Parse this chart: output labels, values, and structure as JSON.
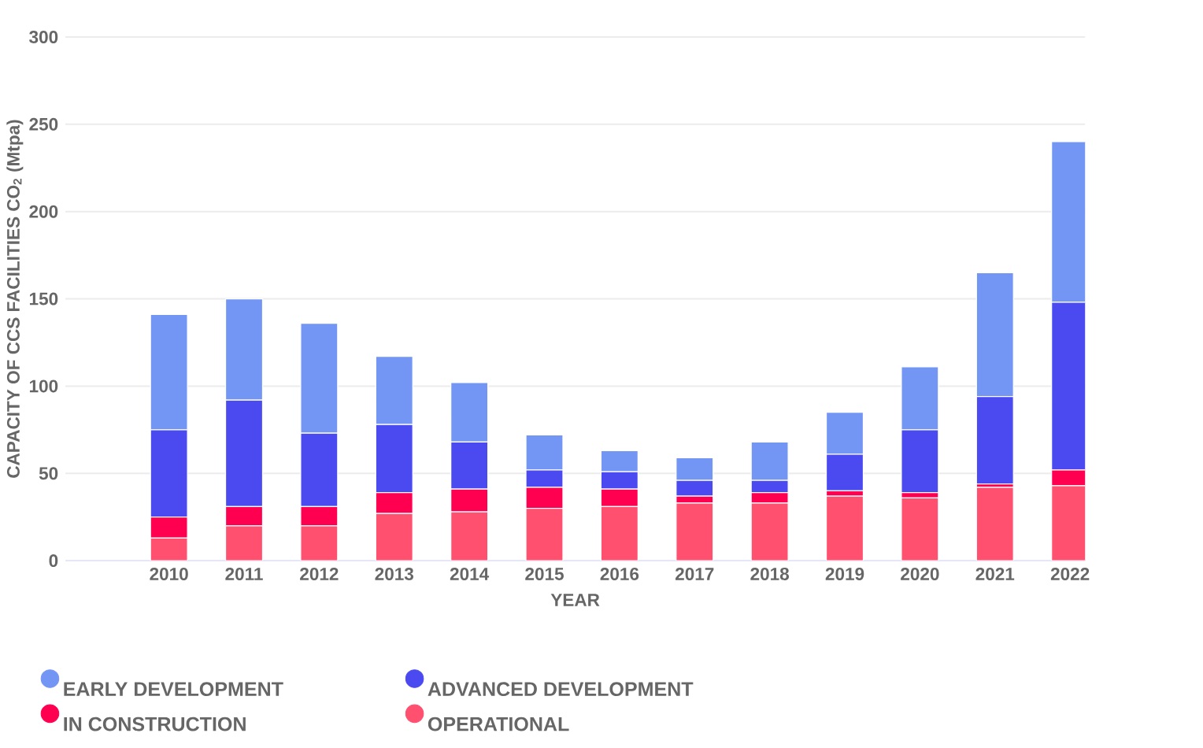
{
  "chart_data": {
    "type": "bar",
    "stacked": true,
    "xlabel": "YEAR",
    "ylabel": "CAPACITY OF CCS FACILITIES CO$_{2}$ (Mtpa)",
    "categories": [
      "2010",
      "2011",
      "2012",
      "2013",
      "2014",
      "2015",
      "2016",
      "2017",
      "2018",
      "2019",
      "2020",
      "2021",
      "2022"
    ],
    "series": [
      {
        "name": "OPERATIONAL",
        "color": "#ff5070",
        "values": [
          13,
          20,
          20,
          27,
          28,
          30,
          31,
          33,
          33,
          37,
          36,
          42,
          43
        ]
      },
      {
        "name": "IN CONSTRUCTION",
        "color": "#ff0050",
        "values": [
          12,
          11,
          11,
          12,
          13,
          12,
          10,
          4,
          6,
          3,
          3,
          2,
          9
        ]
      },
      {
        "name": "ADVANCED DEVELOPMENT",
        "color": "#4a4af0",
        "values": [
          50,
          61,
          42,
          39,
          27,
          10,
          10,
          9,
          7,
          21,
          36,
          50,
          96
        ]
      },
      {
        "name": "EARLY DEVELOPMENT",
        "color": "#7396f5",
        "values": [
          66,
          58,
          63,
          39,
          34,
          20,
          12,
          13,
          22,
          24,
          36,
          71,
          92
        ]
      }
    ],
    "ylim": [
      0,
      300
    ],
    "yticks": [
      0,
      50,
      100,
      150,
      200,
      250,
      300
    ],
    "grid": "y",
    "legend": "bottom"
  }
}
